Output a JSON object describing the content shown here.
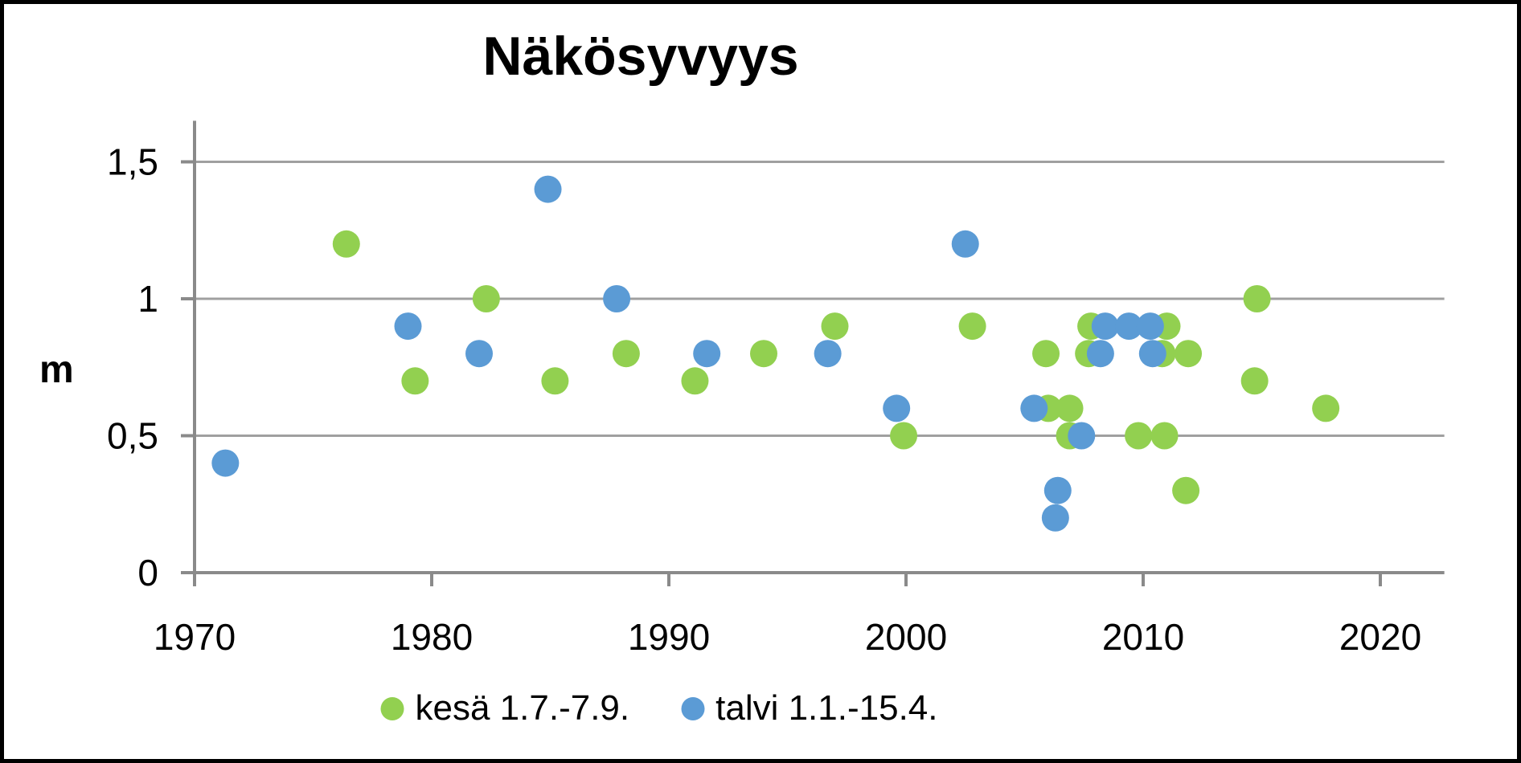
{
  "frame": {
    "background": "#FFFFFF",
    "border_color": "#000000"
  },
  "chart_data": {
    "type": "scatter",
    "title": "Näkösyvyys",
    "ylabel": "m",
    "xlabel": "",
    "grid": true,
    "legend_position": "bottom",
    "x_axis": {
      "min": 1970,
      "max": 2022.7,
      "ticks": [
        1970,
        1980,
        1990,
        2000,
        2010,
        2020
      ]
    },
    "y_axis": {
      "min": 0,
      "max": 1.65,
      "tick_values": [
        0,
        0.5,
        1,
        1.5
      ],
      "tick_labels": [
        "0",
        "0,5",
        "1",
        "1,5"
      ]
    },
    "colors": {
      "gridline": "#A0A0A0",
      "axis": "#8A8A8A",
      "text": "#000000"
    },
    "series": [
      {
        "name": "kesä 1.7.-7.9.",
        "color": "#92D050",
        "points": [
          [
            1976.4,
            1.2
          ],
          [
            1979.3,
            0.7
          ],
          [
            1982.3,
            1.0
          ],
          [
            1985.2,
            0.7
          ],
          [
            1988.2,
            0.8
          ],
          [
            1991.1,
            0.7
          ],
          [
            1994.0,
            0.8
          ],
          [
            1997.0,
            0.9
          ],
          [
            1999.9,
            0.5
          ],
          [
            2002.8,
            0.9
          ],
          [
            2005.9,
            0.8
          ],
          [
            2006.0,
            0.6
          ],
          [
            2006.9,
            0.6
          ],
          [
            2006.9,
            0.5
          ],
          [
            2007.7,
            0.8
          ],
          [
            2007.8,
            0.9
          ],
          [
            2009.8,
            0.5
          ],
          [
            2010.8,
            0.8
          ],
          [
            2010.9,
            0.5
          ],
          [
            2011.0,
            0.9
          ],
          [
            2011.8,
            0.3
          ],
          [
            2011.9,
            0.8
          ],
          [
            2014.7,
            0.7
          ],
          [
            2014.8,
            1.0
          ],
          [
            2017.7,
            0.6
          ]
        ]
      },
      {
        "name": "talvi 1.1.-15.4.",
        "color": "#5B9BD5",
        "points": [
          [
            1971.3,
            0.4
          ],
          [
            1979.0,
            0.9
          ],
          [
            1982.0,
            0.8
          ],
          [
            1984.9,
            1.4
          ],
          [
            1987.8,
            1.0
          ],
          [
            1991.6,
            0.8
          ],
          [
            1996.7,
            0.8
          ],
          [
            1999.6,
            0.6
          ],
          [
            2002.5,
            1.2
          ],
          [
            2005.4,
            0.6
          ],
          [
            2006.3,
            0.2
          ],
          [
            2006.4,
            0.3
          ],
          [
            2007.4,
            0.5
          ],
          [
            2008.2,
            0.8
          ],
          [
            2008.4,
            0.9
          ],
          [
            2009.4,
            0.9
          ],
          [
            2010.3,
            0.9
          ],
          [
            2010.4,
            0.8
          ]
        ]
      }
    ]
  }
}
